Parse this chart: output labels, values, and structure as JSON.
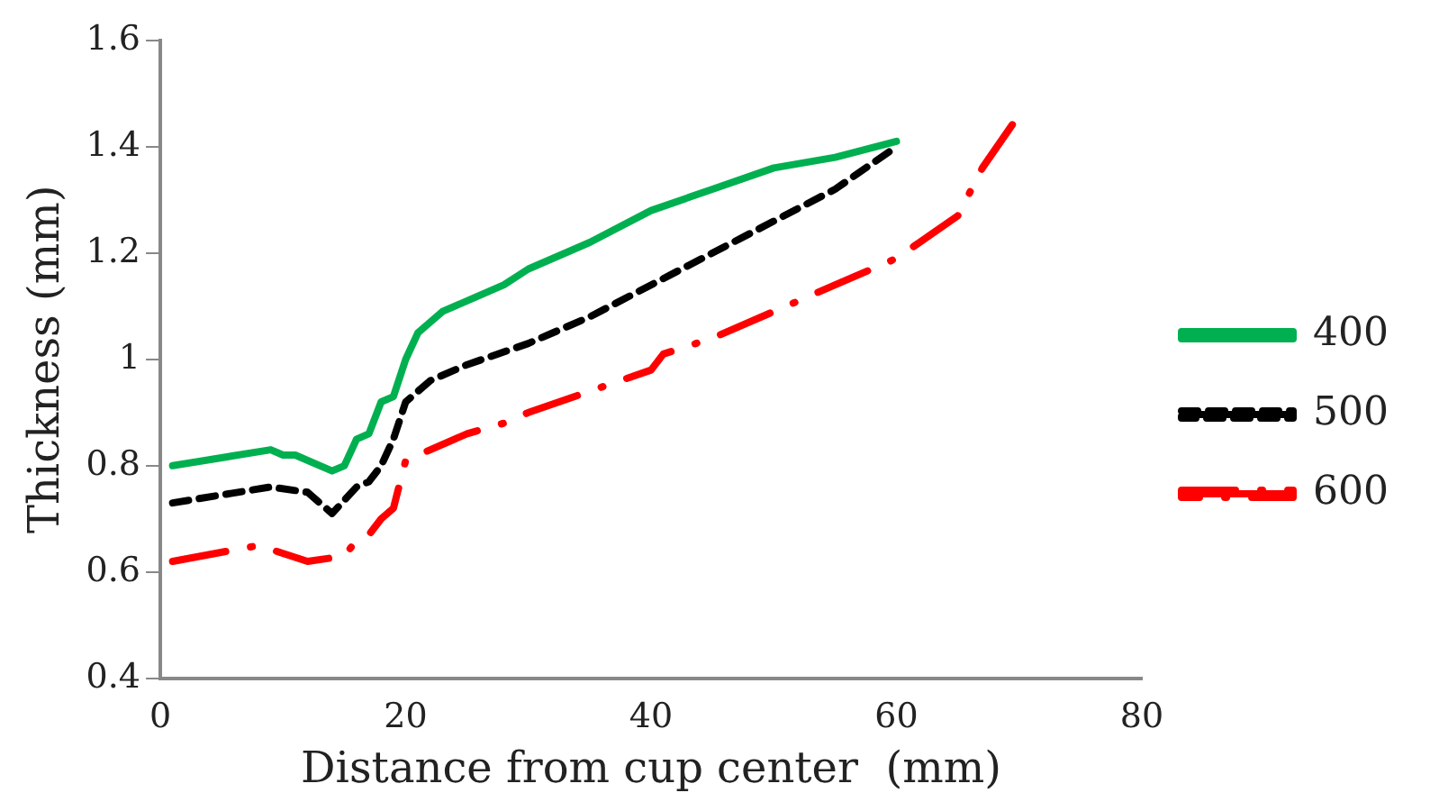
{
  "chart_data": {
    "type": "line",
    "xlabel": "Distance from cup center  (mm)",
    "ylabel": "Thickness (mm)",
    "xlim": [
      0,
      80
    ],
    "xticks": [
      0,
      20,
      40,
      60,
      80
    ],
    "ylim": [
      0.4,
      1.6
    ],
    "yticks": [
      0.4,
      0.6,
      0.8,
      1,
      1.2,
      1.4,
      1.6
    ],
    "grid": false,
    "legend": "right",
    "marker": "none",
    "series": [
      {
        "name": "400",
        "color": "#00b050",
        "line_style": "solid",
        "x": [
          1,
          9,
          10,
          11,
          14,
          15,
          16,
          17,
          18,
          19,
          20,
          21,
          23,
          25,
          28,
          30,
          35,
          40,
          45,
          50,
          55,
          60
        ],
        "values": [
          0.8,
          0.83,
          0.82,
          0.82,
          0.79,
          0.8,
          0.85,
          0.86,
          0.92,
          0.93,
          1.0,
          1.05,
          1.09,
          1.11,
          1.14,
          1.17,
          1.22,
          1.28,
          1.32,
          1.36,
          1.38,
          1.41
        ]
      },
      {
        "name": "500",
        "color": "#000000",
        "line_style": "dashed",
        "x": [
          1,
          9,
          12,
          14,
          16,
          17,
          18,
          19,
          20,
          22,
          25,
          30,
          35,
          40,
          45,
          50,
          55,
          60
        ],
        "values": [
          0.73,
          0.76,
          0.75,
          0.71,
          0.76,
          0.77,
          0.8,
          0.85,
          0.92,
          0.96,
          0.99,
          1.03,
          1.08,
          1.14,
          1.2,
          1.26,
          1.32,
          1.4
        ]
      },
      {
        "name": "600",
        "color": "#ff0000",
        "line_style": "dotted",
        "x": [
          1,
          8,
          12,
          15,
          16,
          17,
          18,
          19,
          20,
          25,
          28,
          30,
          35,
          40,
          41,
          45,
          50,
          55,
          60,
          65,
          67,
          70
        ],
        "values": [
          0.62,
          0.65,
          0.62,
          0.63,
          0.66,
          0.67,
          0.7,
          0.72,
          0.81,
          0.86,
          0.88,
          0.9,
          0.94,
          0.98,
          1.01,
          1.04,
          1.09,
          1.14,
          1.19,
          1.27,
          1.36,
          1.46
        ]
      }
    ]
  }
}
